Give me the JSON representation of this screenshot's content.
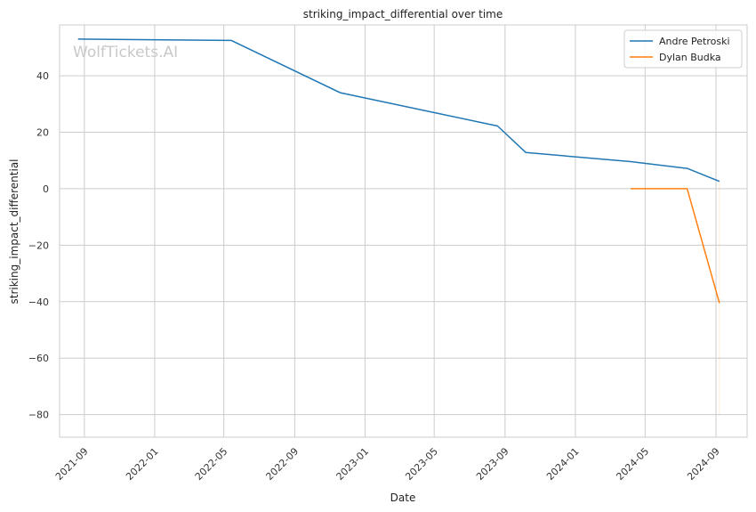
{
  "chart_data": {
    "type": "line",
    "title": "striking_impact_differential over time",
    "xlabel": "Date",
    "ylabel": "striking_impact_differential",
    "watermark": "WolfTickets.AI",
    "x_ticks": [
      "2021-09",
      "2022-01",
      "2022-05",
      "2022-09",
      "2023-01",
      "2023-05",
      "2023-09",
      "2024-01",
      "2024-05",
      "2024-09"
    ],
    "y_ticks": [
      40,
      20,
      0,
      -20,
      -40,
      -60,
      -80
    ],
    "ylim": [
      -88,
      58
    ],
    "xlim": [
      "2021-07-20",
      "2024-10-25"
    ],
    "grid": true,
    "legend_position": "top-right",
    "series": [
      {
        "name": "Andre Petroski",
        "color": "#1f77b4",
        "points": [
          {
            "x": "2021-08-21",
            "y": 53
          },
          {
            "x": "2022-05-14",
            "y": 52.5
          },
          {
            "x": "2022-11-19",
            "y": 34
          },
          {
            "x": "2023-08-19",
            "y": 22.2
          },
          {
            "x": "2023-10-07",
            "y": 12.8
          },
          {
            "x": "2024-04-06",
            "y": 9.6
          },
          {
            "x": "2024-07-13",
            "y": 7.2
          },
          {
            "x": "2024-09-07",
            "y": 2.6
          }
        ]
      },
      {
        "name": "Dylan Budka",
        "color": "#ff7f0e",
        "points": [
          {
            "x": "2024-04-06",
            "y": 0
          },
          {
            "x": "2024-07-13",
            "y": 0
          },
          {
            "x": "2024-09-07",
            "y": -40.5
          }
        ]
      }
    ]
  }
}
